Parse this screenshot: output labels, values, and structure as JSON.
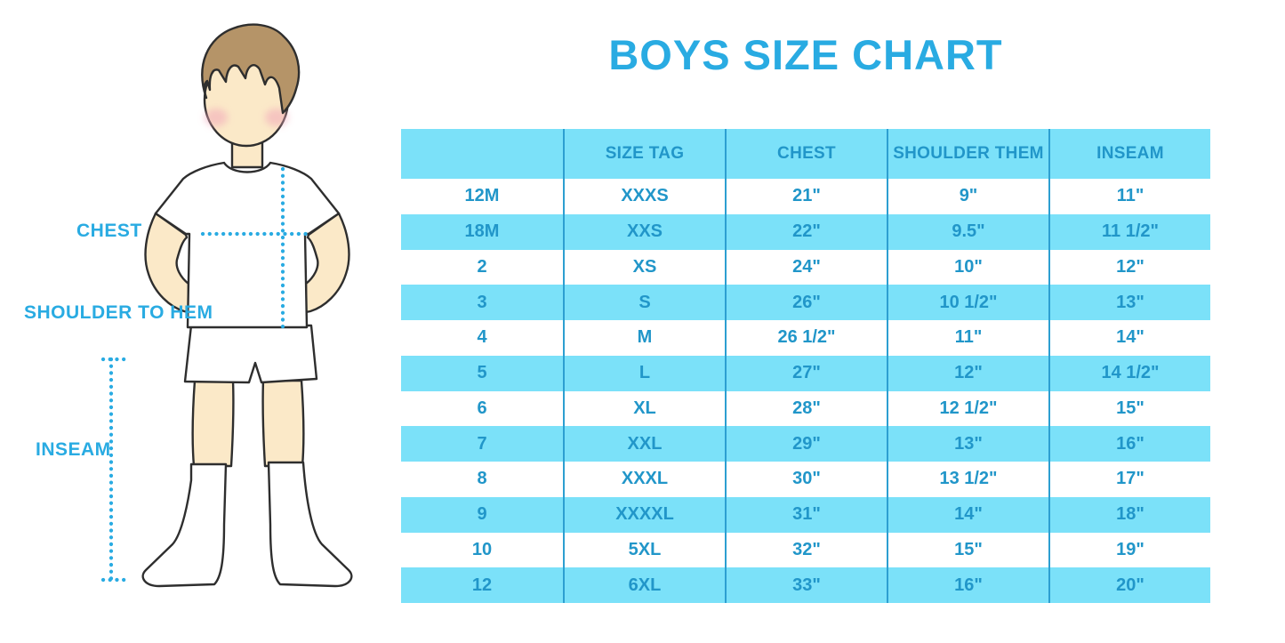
{
  "title": "BOYS SIZE CHART",
  "figure_labels": {
    "chest": "CHEST",
    "shoulder_to_hem": "SHOULDER TO HEM",
    "inseam": "INSEAM"
  },
  "colors": {
    "accent_blue": "#29ABE2",
    "table_text_blue": "#2196C9",
    "stripe_cyan": "#7BE1F9",
    "divider_blue": "#2D9FD1",
    "skin": "#FBE9C8",
    "hair_brown": "#B59468",
    "blush_pink": "#F2A7B9",
    "outline_dark": "#2E2E2E",
    "clothes_white": "#FFFFFF"
  },
  "chart_data": {
    "type": "table",
    "title": "BOYS SIZE CHART",
    "columns": [
      "",
      "SIZE TAG",
      "CHEST",
      "SHOULDER THEM",
      "INSEAM"
    ],
    "rows": [
      [
        "12M",
        "XXXS",
        "21\"",
        "9\"",
        "11\""
      ],
      [
        "18M",
        "XXS",
        "22\"",
        "9.5\"",
        "11 1/2\""
      ],
      [
        "2",
        "XS",
        "24\"",
        "10\"",
        "12\""
      ],
      [
        "3",
        "S",
        "26\"",
        "10 1/2\"",
        "13\""
      ],
      [
        "4",
        "M",
        "26 1/2\"",
        "11\"",
        "14\""
      ],
      [
        "5",
        "L",
        "27\"",
        "12\"",
        "14 1/2\""
      ],
      [
        "6",
        "XL",
        "28\"",
        "12 1/2\"",
        "15\""
      ],
      [
        "7",
        "XXL",
        "29\"",
        "13\"",
        "16\""
      ],
      [
        "8",
        "XXXL",
        "30\"",
        "13 1/2\"",
        "17\""
      ],
      [
        "9",
        "XXXXL",
        "31\"",
        "14\"",
        "18\""
      ],
      [
        "10",
        "5XL",
        "32\"",
        "15\"",
        "19\""
      ],
      [
        "12",
        "6XL",
        "33\"",
        "16\"",
        "20\""
      ]
    ]
  }
}
